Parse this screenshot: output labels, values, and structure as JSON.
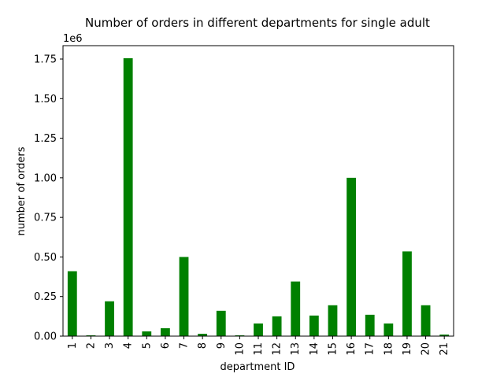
{
  "chart_data": {
    "type": "bar",
    "title": "Number of orders in different departments for single adult",
    "xlabel": "department ID",
    "ylabel": "number of orders",
    "y_offset_label": "1e6",
    "categories": [
      "1",
      "2",
      "3",
      "4",
      "5",
      "6",
      "7",
      "8",
      "9",
      "10",
      "11",
      "12",
      "13",
      "14",
      "15",
      "16",
      "17",
      "18",
      "19",
      "20",
      "21"
    ],
    "values": [
      410000,
      5000,
      220000,
      1755000,
      30000,
      50000,
      500000,
      15000,
      160000,
      5000,
      80000,
      125000,
      345000,
      130000,
      195000,
      1000000,
      135000,
      80000,
      535000,
      195000,
      10000
    ],
    "ylim": [
      0,
      1750000.0
    ],
    "yticks": [
      0,
      250000,
      500000,
      750000,
      1000000,
      1250000,
      1500000,
      1750000
    ],
    "ytick_labels": [
      "0.00",
      "0.25",
      "0.50",
      "0.75",
      "1.00",
      "1.25",
      "1.50",
      "1.75"
    ],
    "bar_color": "#008000",
    "grid": false
  }
}
